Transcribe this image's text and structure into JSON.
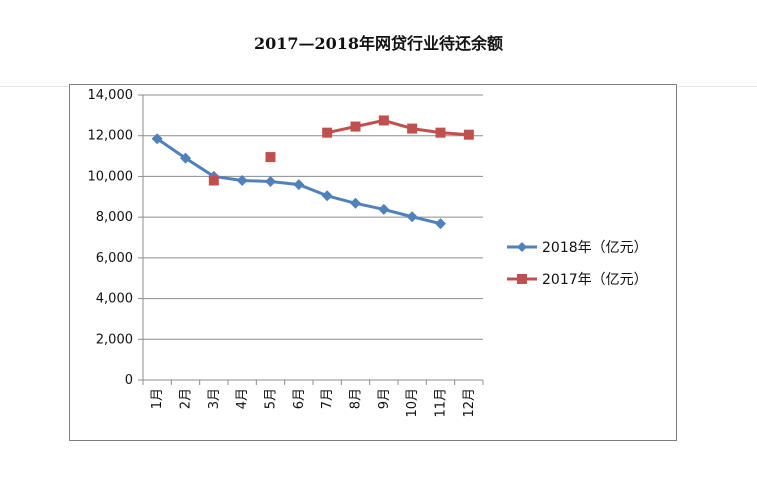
{
  "title": "2017—2018年网贷行业待还余额",
  "chart_data": {
    "type": "line",
    "categories": [
      "1月",
      "2月",
      "3月",
      "4月",
      "5月",
      "6月",
      "7月",
      "8月",
      "9月",
      "10月",
      "11月",
      "12月"
    ],
    "series": [
      {
        "name": "2018年（亿元）",
        "color": "#4F81BD",
        "marker": "diamond",
        "values": [
          11850,
          10900,
          10000,
          9800,
          9750,
          9600,
          9050,
          8680,
          8380,
          8020,
          7680,
          null
        ]
      },
      {
        "name": "2017年（亿元）",
        "color": "#C0504D",
        "marker": "square",
        "values": [
          null,
          null,
          9800,
          null,
          10950,
          null,
          12150,
          12450,
          12750,
          12350,
          12150,
          12050
        ]
      }
    ],
    "y_ticks": [
      "0",
      "2,000",
      "4,000",
      "6,000",
      "8,000",
      "10,000",
      "12,000",
      "14,000"
    ],
    "ylim": [
      0,
      14000
    ],
    "grid": true,
    "legend_position": "right",
    "xlabel": "",
    "ylabel": ""
  }
}
